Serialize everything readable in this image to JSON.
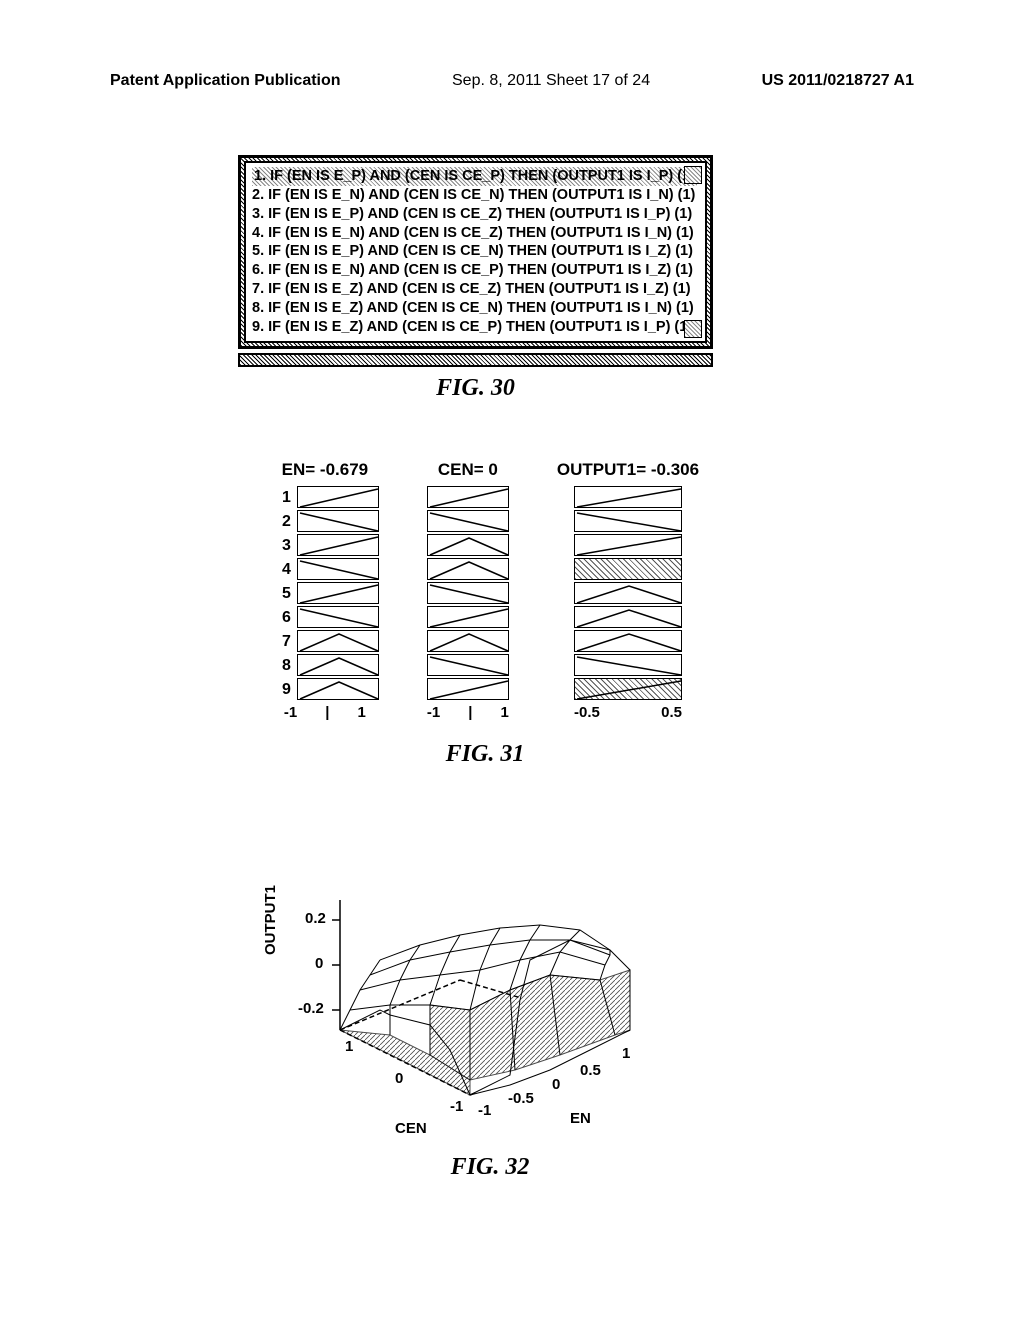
{
  "header": {
    "left": "Patent Application Publication",
    "mid": "Sep. 8, 2011  Sheet 17 of 24",
    "right": "US 2011/0218727 A1"
  },
  "fig30": {
    "rules": [
      "1. IF (EN IS E_P) AND (CEN IS CE_P) THEN (OUTPUT1 IS I_P) (1)",
      "2. IF (EN IS E_N) AND (CEN IS CE_N) THEN (OUTPUT1 IS I_N) (1)",
      "3. IF (EN IS E_P) AND (CEN IS CE_Z) THEN (OUTPUT1 IS I_P) (1)",
      "4. IF (EN IS E_N) AND (CEN IS CE_Z) THEN (OUTPUT1 IS I_N) (1)",
      "5. IF (EN IS E_P) AND (CEN IS CE_N) THEN (OUTPUT1 IS I_Z) (1)",
      "6. IF (EN IS E_N) AND (CEN IS CE_P) THEN (OUTPUT1 IS I_Z) (1)",
      "7. IF (EN IS E_Z) AND (CEN IS CE_Z) THEN (OUTPUT1 IS I_Z) (1)",
      "8. IF (EN IS E_Z) AND (CEN IS CE_N) THEN (OUTPUT1 IS I_N) (1)",
      "9. IF (EN IS E_Z) AND (CEN IS CE_P) THEN (OUTPUT1 IS I_P) (1)"
    ],
    "caption": "FIG. 30"
  },
  "fig31": {
    "en_title": "EN= -0.679",
    "cen_title": "CEN= 0",
    "out_title": "OUTPUT1= -0.306",
    "en_axis": [
      "-1",
      "1"
    ],
    "cen_axis": [
      "-1",
      "1"
    ],
    "out_axis": [
      "-0.5",
      "0.5"
    ],
    "row_count": 9,
    "en_shapes": [
      "up",
      "dn",
      "up",
      "dn",
      "up",
      "dn",
      "tri",
      "tri",
      "tri"
    ],
    "cen_shapes": [
      "up",
      "dn",
      "tri",
      "tri",
      "dn",
      "up",
      "tri",
      "dn",
      "up"
    ],
    "out_shapes": [
      "up",
      "dn",
      "up",
      "hatch",
      "tri",
      "tri",
      "tri",
      "dn",
      "hatch-up"
    ],
    "caption": "FIG. 31"
  },
  "fig32": {
    "ylabel": "OUTPUT1",
    "yticks": [
      "0.2",
      "0",
      "-0.2"
    ],
    "cen_label": "CEN",
    "en_label": "EN",
    "cen_ticks": [
      "1",
      "0",
      "-1"
    ],
    "en_ticks": [
      "-1",
      "-0.5",
      "0",
      "0.5",
      "1"
    ],
    "caption": "FIG. 32"
  }
}
